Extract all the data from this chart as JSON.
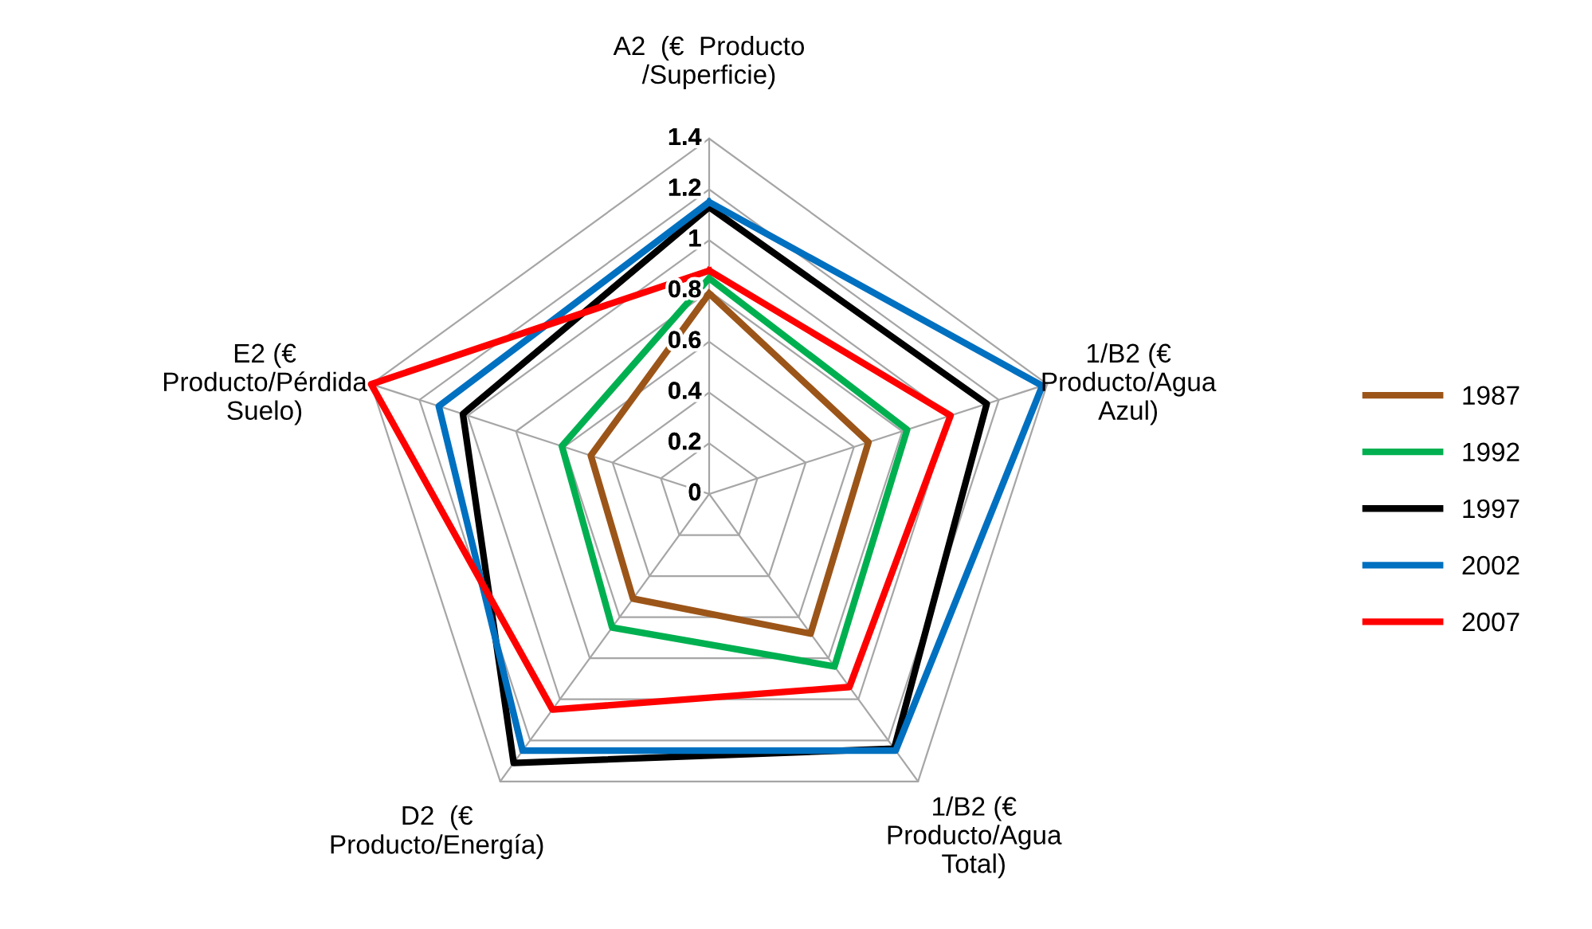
{
  "chart_data": {
    "type": "radar",
    "categories": [
      "A2  (€  Producto\n/Superficie)",
      "1/B2 (€\nProducto/Agua\nAzul)",
      "1/B2 (€\nProducto/Agua\nTotal)",
      "D2  (€\nProducto/Energía)",
      "E2 (€\nProducto/Pérdida\nSuelo)"
    ],
    "series": [
      {
        "name": "1987",
        "color": "#9c5518",
        "values": [
          0.79,
          0.66,
          0.68,
          0.51,
          0.49
        ]
      },
      {
        "name": "1992",
        "color": "#00b050",
        "values": [
          0.85,
          0.82,
          0.84,
          0.65,
          0.61
        ]
      },
      {
        "name": "1997",
        "color": "#000000",
        "values": [
          1.13,
          1.15,
          1.24,
          1.31,
          1.02
        ]
      },
      {
        "name": "2002",
        "color": "#0070c0",
        "values": [
          1.15,
          1.38,
          1.25,
          1.25,
          1.12
        ]
      },
      {
        "name": "2007",
        "color": "#ff0000",
        "values": [
          0.88,
          1.0,
          0.94,
          1.05,
          1.4
        ]
      }
    ],
    "ylim": [
      0,
      1.4
    ],
    "yticks": [
      0,
      0.2,
      0.4,
      0.6,
      0.8,
      1,
      1.2,
      1.4
    ],
    "grid": true,
    "legend": "right",
    "marker": "none",
    "line_style": "solid"
  }
}
